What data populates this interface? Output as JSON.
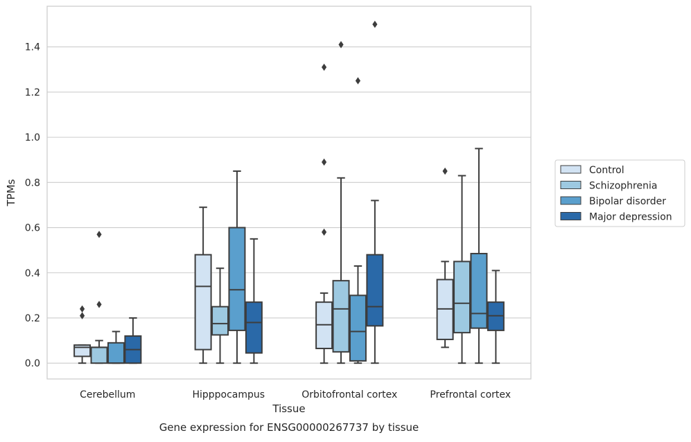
{
  "chart_data": {
    "type": "box",
    "xlabel": "Tissue",
    "ylabel": "TPMs",
    "caption": "Gene expression for ENSG00000267737 by tissue",
    "ylim": [
      -0.07,
      1.58
    ],
    "yticks": [
      0.0,
      0.2,
      0.4,
      0.6,
      0.8,
      1.0,
      1.2,
      1.4
    ],
    "grid": "horizontal",
    "legend_position": "right",
    "categories": [
      "Cerebellum",
      "Hipppocampus",
      "Orbitofrontal cortex",
      "Prefrontal cortex"
    ],
    "series": [
      {
        "name": "Control",
        "color": "#d2e3f3",
        "boxes": [
          {
            "whislo": 0.0,
            "q1": 0.03,
            "med": 0.07,
            "q3": 0.08,
            "whishi": 0.08,
            "fliers": [
              0.21,
              0.24
            ]
          },
          {
            "whislo": 0.0,
            "q1": 0.06,
            "med": 0.34,
            "q3": 0.48,
            "whishi": 0.69,
            "fliers": []
          },
          {
            "whislo": 0.0,
            "q1": 0.065,
            "med": 0.17,
            "q3": 0.27,
            "whishi": 0.31,
            "fliers": [
              0.58,
              0.89,
              1.31
            ]
          },
          {
            "whislo": 0.07,
            "q1": 0.105,
            "med": 0.24,
            "q3": 0.37,
            "whishi": 0.45,
            "fliers": [
              0.85
            ]
          }
        ]
      },
      {
        "name": "Schizophrenia",
        "color": "#9dc9e1",
        "boxes": [
          {
            "whislo": 0.0,
            "q1": 0.0,
            "med": 0.07,
            "q3": 0.07,
            "whishi": 0.1,
            "fliers": [
              0.26,
              0.57
            ]
          },
          {
            "whislo": 0.0,
            "q1": 0.125,
            "med": 0.175,
            "q3": 0.25,
            "whishi": 0.42,
            "fliers": []
          },
          {
            "whislo": 0.0,
            "q1": 0.05,
            "med": 0.24,
            "q3": 0.365,
            "whishi": 0.82,
            "fliers": [
              1.41
            ]
          },
          {
            "whislo": 0.0,
            "q1": 0.135,
            "med": 0.265,
            "q3": 0.45,
            "whishi": 0.83,
            "fliers": []
          }
        ]
      },
      {
        "name": "Bipolar disorder",
        "color": "#5a9fcd",
        "boxes": [
          {
            "whislo": 0.0,
            "q1": 0.0,
            "med": 0.0,
            "q3": 0.09,
            "whishi": 0.14,
            "fliers": []
          },
          {
            "whislo": 0.0,
            "q1": 0.145,
            "med": 0.325,
            "q3": 0.6,
            "whishi": 0.85,
            "fliers": []
          },
          {
            "whislo": 0.0,
            "q1": 0.01,
            "med": 0.14,
            "q3": 0.3,
            "whishi": 0.43,
            "fliers": [
              1.25
            ]
          },
          {
            "whislo": 0.0,
            "q1": 0.155,
            "med": 0.22,
            "q3": 0.485,
            "whishi": 0.95,
            "fliers": []
          }
        ]
      },
      {
        "name": "Major depression",
        "color": "#2a69a8",
        "boxes": [
          {
            "whislo": 0.0,
            "q1": 0.0,
            "med": 0.06,
            "q3": 0.12,
            "whishi": 0.2,
            "fliers": []
          },
          {
            "whislo": 0.0,
            "q1": 0.045,
            "med": 0.18,
            "q3": 0.27,
            "whishi": 0.55,
            "fliers": []
          },
          {
            "whislo": 0.0,
            "q1": 0.165,
            "med": 0.25,
            "q3": 0.48,
            "whishi": 0.72,
            "fliers": [
              1.5
            ]
          },
          {
            "whislo": 0.0,
            "q1": 0.145,
            "med": 0.21,
            "q3": 0.27,
            "whishi": 0.41,
            "fliers": []
          }
        ]
      }
    ]
  }
}
